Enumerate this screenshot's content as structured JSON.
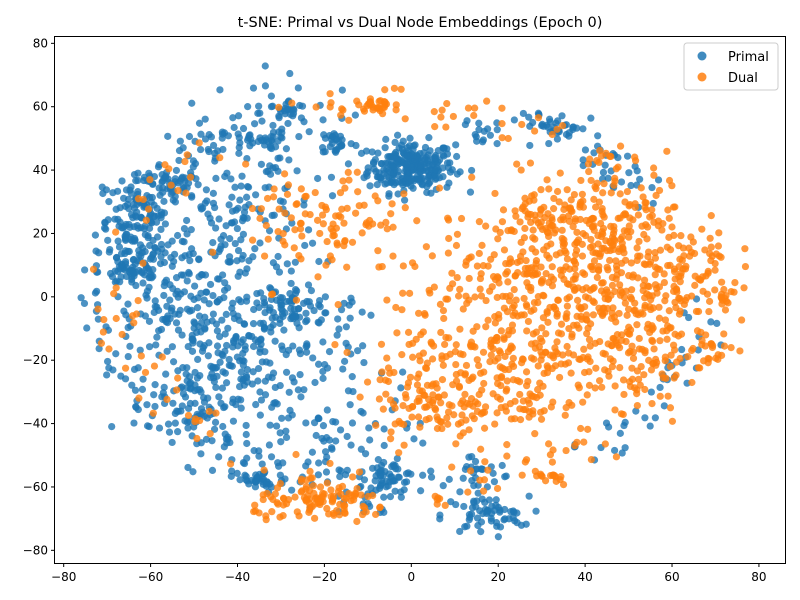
{
  "chart_data": {
    "type": "scatter",
    "title": "t-SNE: Primal vs Dual Node Embeddings (Epoch 0)",
    "xlabel": "",
    "ylabel": "",
    "xlim": [
      -82,
      86
    ],
    "ylim": [
      -84,
      82
    ],
    "xticks": [
      -80,
      -60,
      -40,
      -20,
      0,
      20,
      40,
      60,
      80
    ],
    "yticks": [
      -80,
      -60,
      -40,
      -20,
      0,
      20,
      40,
      60,
      80
    ],
    "grid": false,
    "legend_position": "top-right",
    "series": [
      {
        "name": "Primal",
        "color": "#1f77b4",
        "clusters": [
          {
            "center": [
              0,
              41
            ],
            "spread": [
              5,
              4
            ],
            "n": 260
          },
          {
            "center": [
              -64,
              25
            ],
            "spread": [
              4,
              6
            ],
            "n": 90
          },
          {
            "center": [
              -64,
              8
            ],
            "spread": [
              4,
              3
            ],
            "n": 50
          },
          {
            "center": [
              -55,
              35
            ],
            "spread": [
              3,
              2
            ],
            "n": 40
          },
          {
            "center": [
              -27,
              -2
            ],
            "spread": [
              3,
              3
            ],
            "n": 50
          },
          {
            "center": [
              -5,
              -57
            ],
            "spread": [
              3,
              2.5
            ],
            "n": 50
          },
          {
            "center": [
              17,
              -69
            ],
            "spread": [
              5,
              3
            ],
            "n": 60
          },
          {
            "center": [
              -35,
              -58
            ],
            "spread": [
              3,
              2
            ],
            "n": 30
          },
          {
            "center": [
              -17,
              49
            ],
            "spread": [
              2,
              2
            ],
            "n": 25
          },
          {
            "center": [
              -28,
              59
            ],
            "spread": [
              2,
              1.5
            ],
            "n": 20
          },
          {
            "center": [
              -42,
              30
            ],
            "spread": [
              10,
              20
            ],
            "n": 220
          },
          {
            "center": [
              -52,
              -5
            ],
            "spread": [
              8,
              12
            ],
            "n": 120
          },
          {
            "center": [
              -35,
              -20
            ],
            "spread": [
              12,
              12
            ],
            "n": 220
          },
          {
            "center": [
              -48,
              -35
            ],
            "spread": [
              6,
              8
            ],
            "n": 70
          },
          {
            "center": [
              -60,
              15
            ],
            "spread": [
              5,
              5
            ],
            "n": 40
          },
          {
            "center": [
              -20,
              -45
            ],
            "spread": [
              10,
              6
            ],
            "n": 60
          },
          {
            "center": [
              -10,
              -62
            ],
            "spread": [
              5,
              4
            ],
            "n": 20
          },
          {
            "center": [
              16,
              52
            ],
            "spread": [
              2,
              2
            ],
            "n": 15
          },
          {
            "center": [
              35,
              54
            ],
            "spread": [
              3,
              2
            ],
            "n": 20
          },
          {
            "center": [
              15,
              -55
            ],
            "spread": [
              3,
              3
            ],
            "n": 20
          },
          {
            "center": [
              -34,
              48
            ],
            "spread": [
              2,
              2
            ],
            "n": 15
          },
          {
            "center": [
              -15,
              -5
            ],
            "spread": [
              2,
              3
            ],
            "n": 10
          }
        ],
        "rings": [
          {
            "angle_range": [
              100,
              250
            ],
            "radius": 80,
            "n": 120
          },
          {
            "angle_range": [
              30,
              70
            ],
            "radius": 75,
            "n": 50
          },
          {
            "angle_range": [
              300,
              360
            ],
            "radius": 78,
            "n": 40
          },
          {
            "angle_range": [
              250,
              290
            ],
            "radius": 75,
            "n": 20
          }
        ]
      },
      {
        "name": "Dual",
        "color": "#ff7f0e",
        "clusters": [
          {
            "center": [
              35,
              5
            ],
            "spread": [
              15,
              15
            ],
            "n": 500
          },
          {
            "center": [
              20,
              -25
            ],
            "spread": [
              12,
              10
            ],
            "n": 180
          },
          {
            "center": [
              45,
              25
            ],
            "spread": [
              10,
              8
            ],
            "n": 150
          },
          {
            "center": [
              55,
              -15
            ],
            "spread": [
              8,
              8
            ],
            "n": 100
          },
          {
            "center": [
              62,
              10
            ],
            "spread": [
              6,
              6
            ],
            "n": 60
          },
          {
            "center": [
              5,
              -35
            ],
            "spread": [
              7,
              6
            ],
            "n": 80
          },
          {
            "center": [
              -20,
              22
            ],
            "spread": [
              9,
              9
            ],
            "n": 100
          },
          {
            "center": [
              -20,
              -65
            ],
            "spread": [
              8,
              3
            ],
            "n": 110
          },
          {
            "center": [
              -8,
              60
            ],
            "spread": [
              2,
              1.5
            ],
            "n": 25
          },
          {
            "center": [
              32,
              -57
            ],
            "spread": [
              2,
              1.5
            ],
            "n": 15
          },
          {
            "center": [
              7,
              -64
            ],
            "spread": [
              1,
              1
            ],
            "n": 6
          },
          {
            "center": [
              0,
              -12
            ],
            "spread": [
              7,
              10
            ],
            "n": 35
          },
          {
            "center": [
              68,
              -15
            ],
            "spread": [
              3,
              3
            ],
            "n": 15
          },
          {
            "center": [
              72,
              2
            ],
            "spread": [
              2,
              3
            ],
            "n": 10
          },
          {
            "center": [
              45,
              45
            ],
            "spread": [
              3,
              2
            ],
            "n": 10
          }
        ],
        "rings": [
          {
            "angle_range": [
              90,
              200
            ],
            "radius": 78,
            "n": 50
          },
          {
            "angle_range": [
              200,
              260
            ],
            "radius": 76,
            "n": 25
          },
          {
            "angle_range": [
              280,
              330
            ],
            "radius": 75,
            "n": 30
          },
          {
            "angle_range": [
              60,
              85
            ],
            "radius": 75,
            "n": 20
          }
        ]
      }
    ]
  }
}
